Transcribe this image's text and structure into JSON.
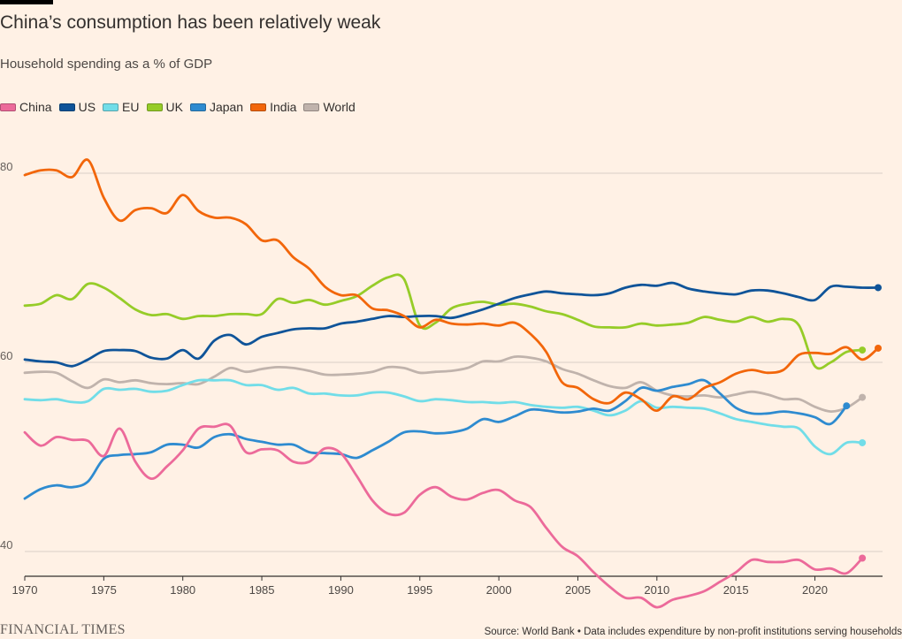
{
  "title": "China’s consumption has been relatively weak",
  "subtitle": "Household spending as a % of GDP",
  "source": "Source: World Bank • Data includes expenditure by non-profit institutions serving households",
  "brand": "FINANCIAL TIMES",
  "chart_data": {
    "type": "line",
    "title": "China’s consumption has been relatively weak",
    "subtitle": "Household spending as a % of GDP",
    "xlabel": "",
    "ylabel": "",
    "xlim": [
      1970,
      2024
    ],
    "ylim": [
      30,
      90
    ],
    "xticks": [
      1970,
      1975,
      1980,
      1985,
      1990,
      1995,
      2000,
      2005,
      2010,
      2015,
      2020
    ],
    "yticks": [
      40,
      60,
      80
    ],
    "grid": true,
    "legend_position": "top-left",
    "series": [
      {
        "name": "China",
        "color": "#ec6a9a",
        "x": [
          1970,
          1971,
          1972,
          1973,
          1974,
          1975,
          1976,
          1977,
          1978,
          1979,
          1980,
          1981,
          1982,
          1983,
          1984,
          1985,
          1986,
          1987,
          1988,
          1989,
          1990,
          1991,
          1992,
          1993,
          1994,
          1995,
          1996,
          1997,
          1998,
          1999,
          2000,
          2001,
          2002,
          2003,
          2004,
          2005,
          2006,
          2007,
          2008,
          2009,
          2010,
          2011,
          2012,
          2013,
          2014,
          2015,
          2016,
          2017,
          2018,
          2019,
          2020,
          2021,
          2022,
          2023
        ],
        "y": [
          52.6,
          51.2,
          52.1,
          51.8,
          51.7,
          50.1,
          53.0,
          49.5,
          47.7,
          49.0,
          50.7,
          53.0,
          53.2,
          53.3,
          50.5,
          50.8,
          50.7,
          49.5,
          49.5,
          50.9,
          50.4,
          48.0,
          45.4,
          44.0,
          44.1,
          46.0,
          46.8,
          45.8,
          45.5,
          46.2,
          46.5,
          45.4,
          44.7,
          42.5,
          40.5,
          39.5,
          37.8,
          36.3,
          35.1,
          35.1,
          34.1,
          34.9,
          35.3,
          35.8,
          36.8,
          37.8,
          39.1,
          38.9,
          38.9,
          39.1,
          38.1,
          38.2,
          37.7,
          39.3
        ]
      },
      {
        "name": "US",
        "color": "#0f5499",
        "x": [
          1970,
          1971,
          1972,
          1973,
          1974,
          1975,
          1976,
          1977,
          1978,
          1979,
          1980,
          1981,
          1982,
          1983,
          1984,
          1985,
          1986,
          1987,
          1988,
          1989,
          1990,
          1991,
          1992,
          1993,
          1994,
          1995,
          1996,
          1997,
          1998,
          1999,
          2000,
          2001,
          2002,
          2003,
          2004,
          2005,
          2006,
          2007,
          2008,
          2009,
          2010,
          2011,
          2012,
          2013,
          2014,
          2015,
          2016,
          2017,
          2018,
          2019,
          2020,
          2021,
          2022,
          2023,
          2024
        ],
        "y": [
          60.3,
          60.1,
          60.0,
          59.6,
          60.3,
          61.2,
          61.3,
          61.2,
          60.5,
          60.4,
          61.3,
          60.4,
          62.3,
          62.9,
          61.9,
          62.7,
          63.1,
          63.5,
          63.6,
          63.6,
          64.1,
          64.3,
          64.6,
          64.9,
          64.8,
          64.9,
          64.9,
          64.7,
          65.1,
          65.6,
          66.2,
          66.8,
          67.2,
          67.5,
          67.3,
          67.2,
          67.1,
          67.3,
          67.9,
          68.2,
          68.1,
          68.4,
          67.8,
          67.5,
          67.3,
          67.2,
          67.6,
          67.6,
          67.3,
          66.9,
          66.6,
          68.0,
          68.0,
          67.9,
          67.9
        ]
      },
      {
        "name": "EU",
        "color": "#71dde8",
        "x": [
          1970,
          1971,
          1972,
          1973,
          1974,
          1975,
          1976,
          1977,
          1978,
          1979,
          1980,
          1981,
          1982,
          1983,
          1984,
          1985,
          1986,
          1987,
          1988,
          1989,
          1990,
          1991,
          1992,
          1993,
          1994,
          1995,
          1996,
          1997,
          1998,
          1999,
          2000,
          2001,
          2002,
          2003,
          2004,
          2005,
          2006,
          2007,
          2008,
          2009,
          2010,
          2011,
          2012,
          2013,
          2014,
          2015,
          2016,
          2017,
          2018,
          2019,
          2020,
          2021,
          2022,
          2023
        ],
        "y": [
          56.1,
          56.0,
          56.1,
          55.8,
          55.9,
          57.2,
          57.1,
          57.2,
          56.9,
          57.0,
          57.6,
          58.1,
          58.1,
          58.1,
          57.6,
          57.6,
          57.1,
          57.3,
          56.7,
          56.7,
          56.5,
          56.5,
          56.8,
          56.8,
          56.4,
          55.9,
          56.1,
          56.0,
          55.8,
          55.8,
          55.7,
          55.8,
          55.5,
          55.3,
          55.2,
          55.3,
          54.9,
          54.4,
          54.9,
          55.9,
          55.2,
          55.3,
          55.2,
          55.1,
          54.6,
          54.0,
          53.7,
          53.4,
          53.2,
          53.0,
          51.1,
          50.3,
          51.5,
          51.5
        ]
      },
      {
        "name": "UK",
        "color": "#96cc28",
        "x": [
          1970,
          1971,
          1972,
          1973,
          1974,
          1975,
          1976,
          1977,
          1978,
          1979,
          1980,
          1981,
          1982,
          1983,
          1984,
          1985,
          1986,
          1987,
          1988,
          1989,
          1990,
          1991,
          1992,
          1993,
          1994,
          1995,
          1996,
          1997,
          1998,
          1999,
          2000,
          2001,
          2002,
          2003,
          2004,
          2005,
          2006,
          2007,
          2008,
          2009,
          2010,
          2011,
          2012,
          2013,
          2014,
          2015,
          2016,
          2017,
          2018,
          2019,
          2020,
          2021,
          2022,
          2023
        ],
        "y": [
          66.0,
          66.2,
          67.1,
          66.7,
          68.3,
          67.9,
          66.8,
          65.6,
          65.0,
          65.1,
          64.6,
          64.9,
          64.9,
          65.1,
          65.1,
          65.1,
          66.7,
          66.3,
          66.6,
          66.1,
          66.5,
          67.0,
          68.1,
          69.0,
          68.8,
          63.9,
          64.2,
          65.7,
          66.2,
          66.4,
          66.1,
          66.2,
          65.9,
          65.4,
          65.1,
          64.5,
          63.8,
          63.7,
          63.7,
          64.1,
          63.9,
          64.0,
          64.2,
          64.8,
          64.5,
          64.3,
          64.8,
          64.3,
          64.6,
          63.9,
          59.6,
          60.0,
          61.1,
          61.3
        ]
      },
      {
        "name": "Japan",
        "color": "#2e8bd0",
        "x": [
          1970,
          1971,
          1972,
          1973,
          1974,
          1975,
          1976,
          1977,
          1978,
          1979,
          1980,
          1981,
          1982,
          1983,
          1984,
          1985,
          1986,
          1987,
          1988,
          1989,
          1990,
          1991,
          1992,
          1993,
          1994,
          1995,
          1996,
          1997,
          1998,
          1999,
          2000,
          2001,
          2002,
          2003,
          2004,
          2005,
          2006,
          2007,
          2008,
          2009,
          2010,
          2011,
          2012,
          2013,
          2014,
          2015,
          2016,
          2017,
          2018,
          2019,
          2020,
          2021,
          2022
        ],
        "y": [
          45.6,
          46.6,
          47.0,
          46.8,
          47.4,
          49.8,
          50.2,
          50.3,
          50.5,
          51.3,
          51.3,
          51.0,
          52.1,
          52.4,
          51.9,
          51.6,
          51.3,
          51.3,
          50.5,
          50.4,
          50.3,
          49.9,
          50.7,
          51.6,
          52.6,
          52.7,
          52.5,
          52.6,
          53.0,
          54.0,
          53.7,
          54.3,
          55.0,
          54.9,
          54.7,
          54.8,
          55.1,
          54.9,
          55.9,
          57.3,
          57.0,
          57.4,
          57.7,
          58.1,
          56.7,
          55.2,
          54.6,
          54.6,
          54.8,
          54.6,
          54.2,
          53.5,
          55.4
        ]
      },
      {
        "name": "India",
        "color": "#f2660a",
        "x": [
          1970,
          1971,
          1972,
          1973,
          1974,
          1975,
          1976,
          1977,
          1978,
          1979,
          1980,
          1981,
          1982,
          1983,
          1984,
          1985,
          1986,
          1987,
          1988,
          1989,
          1990,
          1991,
          1992,
          1993,
          1994,
          1995,
          1996,
          1997,
          1998,
          1999,
          2000,
          2001,
          2002,
          2003,
          2004,
          2005,
          2006,
          2007,
          2008,
          2009,
          2010,
          2011,
          2012,
          2013,
          2014,
          2015,
          2016,
          2017,
          2018,
          2019,
          2020,
          2021,
          2022,
          2023,
          2024
        ],
        "y": [
          79.8,
          80.3,
          80.3,
          79.6,
          81.4,
          77.4,
          75.0,
          76.1,
          76.3,
          75.8,
          77.7,
          76.0,
          75.3,
          75.3,
          74.6,
          72.9,
          72.9,
          71.1,
          69.9,
          68.0,
          67.1,
          67.1,
          65.7,
          65.5,
          64.9,
          63.7,
          64.5,
          64.1,
          64.0,
          64.1,
          63.9,
          64.2,
          63.0,
          61.1,
          57.9,
          57.3,
          56.1,
          55.7,
          56.8,
          56.1,
          54.9,
          56.4,
          56.1,
          57.3,
          57.9,
          58.8,
          59.2,
          58.9,
          59.2,
          60.8,
          61.0,
          60.9,
          61.6,
          60.3,
          61.5
        ]
      },
      {
        "name": "World",
        "color": "#c0b3ac",
        "x": [
          1970,
          1971,
          1972,
          1973,
          1974,
          1975,
          1976,
          1977,
          1978,
          1979,
          1980,
          1981,
          1982,
          1983,
          1984,
          1985,
          1986,
          1987,
          1988,
          1989,
          1990,
          1991,
          1992,
          1993,
          1994,
          1995,
          1996,
          1997,
          1998,
          1999,
          2000,
          2001,
          2002,
          2003,
          2004,
          2005,
          2006,
          2007,
          2008,
          2009,
          2010,
          2011,
          2012,
          2013,
          2014,
          2015,
          2016,
          2017,
          2018,
          2019,
          2020,
          2021,
          2022,
          2023
        ],
        "y": [
          58.9,
          59.0,
          58.9,
          58.0,
          57.3,
          58.2,
          57.9,
          58.1,
          57.8,
          57.7,
          57.8,
          57.7,
          58.5,
          59.4,
          59.0,
          59.3,
          59.5,
          59.4,
          59.1,
          58.7,
          58.7,
          58.8,
          59.0,
          59.5,
          59.4,
          58.9,
          59.0,
          59.1,
          59.4,
          60.1,
          60.1,
          60.6,
          60.5,
          60.1,
          59.3,
          58.8,
          58.1,
          57.5,
          57.3,
          57.9,
          57.0,
          56.5,
          56.4,
          56.5,
          56.3,
          56.6,
          56.9,
          56.6,
          56.1,
          56.1,
          55.3,
          54.8,
          55.2,
          56.3
        ]
      }
    ]
  }
}
